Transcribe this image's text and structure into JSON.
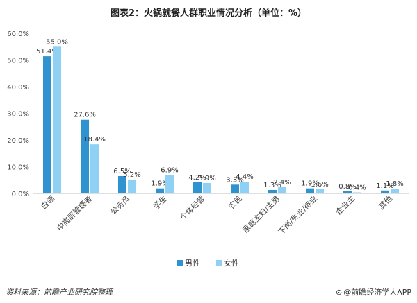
{
  "chart_data": {
    "type": "bar",
    "title": "图表2：火锅就餐人群职业情况分析（单位：%）",
    "categories": [
      "白领",
      "中高层管理者",
      "公务员",
      "学生",
      "个体经营",
      "农民",
      "家庭主妇/主男",
      "下岗/失业/待业",
      "企业主",
      "其他"
    ],
    "series": [
      {
        "name": "男性",
        "color": "#2f93cf",
        "values": [
          51.4,
          27.6,
          6.5,
          1.9,
          4.2,
          3.3,
          1.3,
          1.9,
          0.8,
          1.1
        ]
      },
      {
        "name": "女性",
        "color": "#8fd0f5",
        "values": [
          55.0,
          18.4,
          5.2,
          6.9,
          3.9,
          4.4,
          2.4,
          1.6,
          0.4,
          1.8
        ]
      }
    ],
    "value_labels": [
      [
        "51.4%",
        "27.6%",
        "6.5%",
        "1.9%",
        "4.2%",
        "3.3%",
        "1.3%",
        "1.9%",
        "0.8%",
        "1.1%"
      ],
      [
        "55.0%",
        "18.4%",
        "5.2%",
        "6.9%",
        "3.9%",
        "4.4%",
        "2.4%",
        "1.6%",
        "0.4%",
        "1.8%"
      ]
    ],
    "ylim": [
      0,
      60
    ],
    "yticks": [
      0,
      10,
      20,
      30,
      40,
      50,
      60
    ],
    "ytick_labels": [
      "0.0%",
      "10.0%",
      "20.0%",
      "30.0%",
      "40.0%",
      "50.0%",
      "60.0%"
    ],
    "xlabel": "",
    "ylabel": "",
    "grid": false,
    "legend_position": "bottom-center"
  },
  "footer": {
    "source": "资料来源：前瞻产业研究院整理",
    "brand": "@前瞻经济学人APP",
    "brand_icon": "qianzhan-logo-icon"
  }
}
